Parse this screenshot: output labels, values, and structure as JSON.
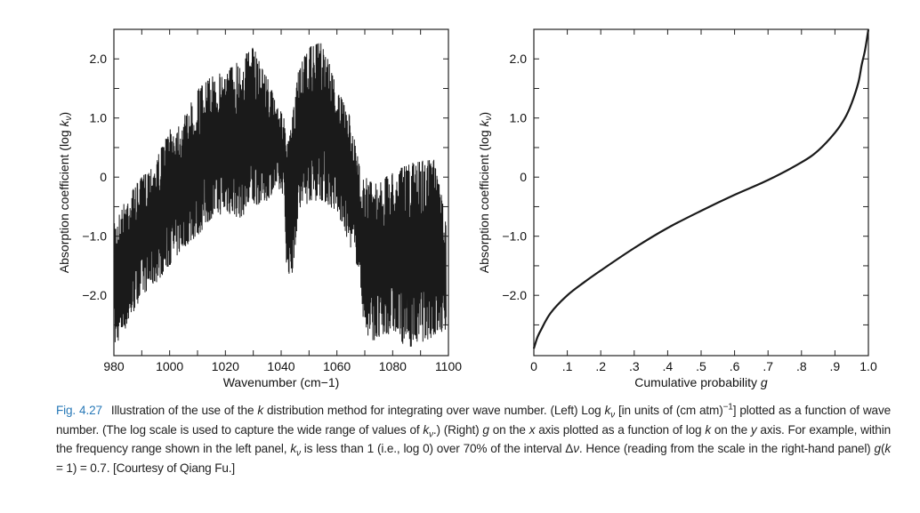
{
  "figure_label": "Fig. 4.27",
  "caption": [
    {
      "t": "Illustration of the use of the "
    },
    {
      "t": "k",
      "i": true
    },
    {
      "t": " distribution method for integrating over wave number. (Left) Log "
    },
    {
      "t": "k",
      "i": true
    },
    {
      "t": "ν",
      "sub": true,
      "i": true
    },
    {
      "t": " [in units of (cm atm)"
    },
    {
      "t": "−1",
      "sup": true
    },
    {
      "t": "] plotted as a function of wave number. (The log scale is used to capture the wide range of values of "
    },
    {
      "t": "k",
      "i": true
    },
    {
      "t": "ν",
      "sub": true,
      "i": true
    },
    {
      "t": ".) (Right) "
    },
    {
      "t": "g",
      "i": true
    },
    {
      "t": " on the "
    },
    {
      "t": "x",
      "i": true
    },
    {
      "t": " axis plotted as a function of log "
    },
    {
      "t": "k",
      "i": true
    },
    {
      "t": " on the "
    },
    {
      "t": "y",
      "i": true
    },
    {
      "t": " axis. For example, within the frequency range shown in the left panel, "
    },
    {
      "t": "k",
      "i": true
    },
    {
      "t": "ν",
      "sub": true,
      "i": true
    },
    {
      "t": " is less than 1 (i.e., log 0) over 70% of the interval Δ"
    },
    {
      "t": "ν",
      "i": true
    },
    {
      "t": ". Hence (reading from the scale in the right-hand panel) "
    },
    {
      "t": "g",
      "i": true
    },
    {
      "t": "("
    },
    {
      "t": "k",
      "i": true
    },
    {
      "t": " = 1) = 0.7. [Courtesy of Qiang Fu.]"
    }
  ],
  "chart_data": [
    {
      "type": "line",
      "title": "",
      "xlabel": "Wavenumber (cm−1)",
      "ylabel": {
        "prefix": "Absorption coefficient (log ",
        "var": "k",
        "sub": "ν",
        "suffix": ")"
      },
      "xlim": [
        980,
        1100
      ],
      "ylim": [
        -3.02,
        2.5
      ],
      "xticks": [
        980,
        1000,
        1020,
        1040,
        1060,
        1080,
        1100
      ],
      "xtick_labels": [
        "980",
        "1000",
        "1020",
        "1040",
        "1060",
        "1080",
        "1100"
      ],
      "yticks": [
        2,
        1,
        0,
        -1,
        -2
      ],
      "ytick_labels": [
        "2.0",
        "1.0",
        "0",
        "−1.0",
        "−2.0"
      ],
      "grid": false,
      "series_description": "dense absorption spectrum; envelope [wavenumber, min log k, max log k]",
      "envelope": [
        [
          980,
          -2.9,
          -0.8
        ],
        [
          985,
          -2.5,
          -0.3
        ],
        [
          990,
          -2.0,
          0.0
        ],
        [
          995,
          -1.8,
          0.3
        ],
        [
          1000,
          -1.5,
          0.8
        ],
        [
          1005,
          -1.2,
          1.0
        ],
        [
          1010,
          -1.0,
          1.5
        ],
        [
          1015,
          -0.7,
          1.7
        ],
        [
          1020,
          -0.6,
          1.8
        ],
        [
          1025,
          -0.7,
          2.0
        ],
        [
          1030,
          -0.5,
          2.2
        ],
        [
          1035,
          -0.4,
          1.7
        ],
        [
          1038,
          -0.2,
          1.3
        ],
        [
          1041,
          -0.3,
          1.0
        ],
        [
          1042,
          -1.6,
          0.5
        ],
        [
          1044,
          -1.7,
          1.0
        ],
        [
          1046,
          -0.7,
          1.8
        ],
        [
          1050,
          -0.4,
          2.2
        ],
        [
          1055,
          -0.4,
          2.3
        ],
        [
          1060,
          -0.6,
          1.5
        ],
        [
          1065,
          -1.2,
          1.0
        ],
        [
          1068,
          -1.6,
          0.2
        ],
        [
          1070,
          -2.7,
          0.0
        ],
        [
          1075,
          -2.8,
          -0.1
        ],
        [
          1080,
          -2.6,
          0.1
        ],
        [
          1085,
          -2.9,
          0.2
        ],
        [
          1090,
          -2.8,
          0.3
        ],
        [
          1095,
          -2.7,
          0.3
        ],
        [
          1100,
          -2.6,
          -0.9
        ]
      ]
    },
    {
      "type": "line",
      "title": "",
      "xlabel": "Cumulative probability",
      "xlabel_var": "g",
      "ylabel": {
        "prefix": "Absorption coefficient (log ",
        "var": "k",
        "sub": "ν",
        "suffix": ")"
      },
      "xlim": [
        0,
        1
      ],
      "ylim": [
        -3.02,
        2.5
      ],
      "xticks": [
        0,
        0.1,
        0.2,
        0.3,
        0.4,
        0.5,
        0.6,
        0.7,
        0.8,
        0.9,
        1.0
      ],
      "xtick_labels": [
        "0",
        ".1",
        ".2",
        ".3",
        ".4",
        ".5",
        ".6",
        ".7",
        ".8",
        ".9",
        "1.0"
      ],
      "yticks": [
        2,
        1,
        0,
        -1,
        -2
      ],
      "ytick_labels": [
        "2.0",
        "1.0",
        "0",
        "−1.0",
        "−2.0"
      ],
      "grid": false,
      "x": [
        0,
        0.01,
        0.02,
        0.05,
        0.1,
        0.15,
        0.2,
        0.3,
        0.4,
        0.5,
        0.6,
        0.7,
        0.8,
        0.85,
        0.9,
        0.93,
        0.95,
        0.97,
        0.98,
        0.99,
        1.0
      ],
      "y": [
        -2.9,
        -2.72,
        -2.6,
        -2.3,
        -2.0,
        -1.78,
        -1.58,
        -1.2,
        -0.86,
        -0.57,
        -0.3,
        -0.05,
        0.25,
        0.45,
        0.75,
        1.0,
        1.25,
        1.6,
        1.9,
        2.15,
        2.5
      ]
    }
  ]
}
